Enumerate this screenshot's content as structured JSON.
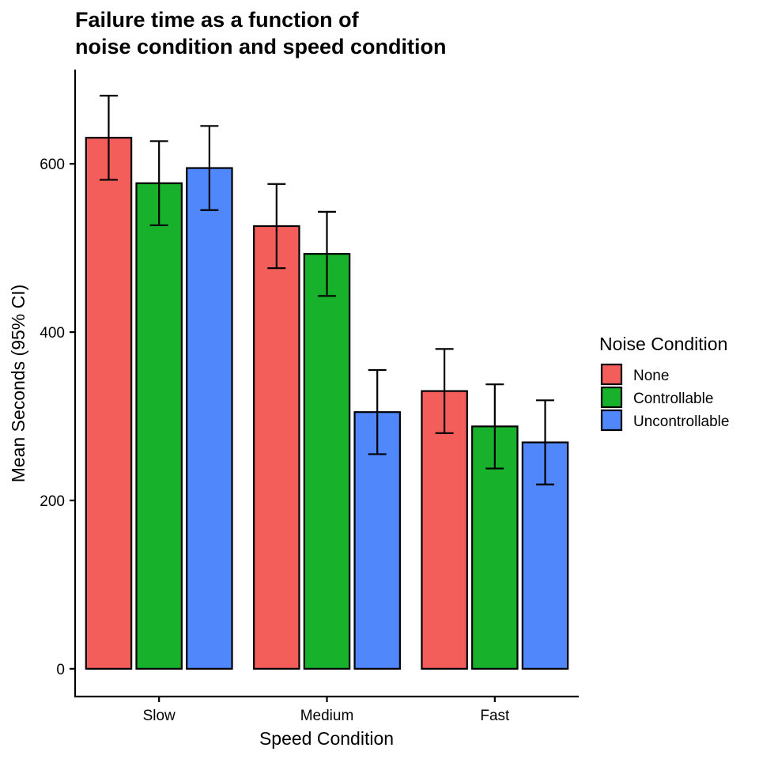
{
  "chart_data": {
    "type": "bar",
    "title_lines": [
      "Failure time as a function of",
      "noise condition and speed condition"
    ],
    "xlabel": "Speed Condition",
    "ylabel": "Mean Seconds (95% CI)",
    "categories": [
      "Slow",
      "Medium",
      "Fast"
    ],
    "ylim": [
      -33,
      712
    ],
    "yticks": [
      0,
      200,
      400,
      600
    ],
    "legend": {
      "title": "Noise Condition",
      "placement": "right"
    },
    "series": [
      {
        "name": "None",
        "color": "#F35E5A",
        "values": [
          631,
          526,
          330
        ],
        "ci_low": [
          581,
          476,
          280
        ],
        "ci_high": [
          681,
          576,
          380
        ]
      },
      {
        "name": "Controllable",
        "color": "#17B12B",
        "values": [
          577,
          493,
          288
        ],
        "ci_low": [
          527,
          443,
          238
        ],
        "ci_high": [
          627,
          543,
          338
        ]
      },
      {
        "name": "Uncontrollable",
        "color": "#5087FB",
        "values": [
          595,
          305,
          269
        ],
        "ci_low": [
          545,
          255,
          219
        ],
        "ci_high": [
          645,
          355,
          319
        ]
      }
    ]
  }
}
